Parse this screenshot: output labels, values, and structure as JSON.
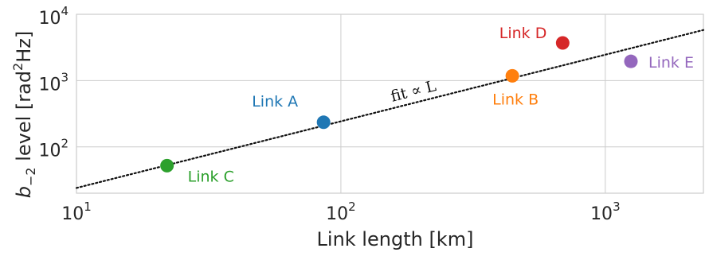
{
  "chart_data": {
    "type": "scatter",
    "title": "",
    "xlabel": "Link length [km]",
    "ylabel": "b-2 level [rad2Hz]",
    "ylabel_parts": {
      "base": "b",
      "subscript": "−2",
      "rest": " level [rad",
      "sup": "2",
      "end": "Hz]"
    },
    "xscale": "log",
    "yscale": "log",
    "xlim": [
      10,
      2350
    ],
    "ylim": [
      20,
      10000
    ],
    "grid": true,
    "x_ticks": [
      {
        "value": 10,
        "base": "10",
        "exp": "1"
      },
      {
        "value": 100,
        "base": "10",
        "exp": "2"
      },
      {
        "value": 1000,
        "base": "10",
        "exp": "3"
      }
    ],
    "y_ticks": [
      {
        "value": 100,
        "base": "10",
        "exp": "2"
      },
      {
        "value": 1000,
        "base": "10",
        "exp": "3"
      },
      {
        "value": 10000,
        "base": "10",
        "exp": "4"
      }
    ],
    "points": [
      {
        "label": "Link A",
        "x": 86,
        "y": 235,
        "color": "#1f77b4",
        "label_pos": "upper-left"
      },
      {
        "label": "Link B",
        "x": 445,
        "y": 1180,
        "color": "#ff7f0e",
        "label_pos": "below"
      },
      {
        "label": "Link C",
        "x": 22,
        "y": 52,
        "color": "#2ca02c",
        "label_pos": "lower-right"
      },
      {
        "label": "Link D",
        "x": 690,
        "y": 3700,
        "color": "#d62728",
        "label_pos": "left"
      },
      {
        "label": "Link E",
        "x": 1250,
        "y": 1950,
        "color": "#9467bd",
        "label_pos": "right"
      }
    ],
    "fit": {
      "label": "fit ∝ L",
      "style": "dotted",
      "color": "#111111",
      "x": [
        10,
        2350
      ],
      "y": [
        24,
        5800
      ]
    }
  }
}
